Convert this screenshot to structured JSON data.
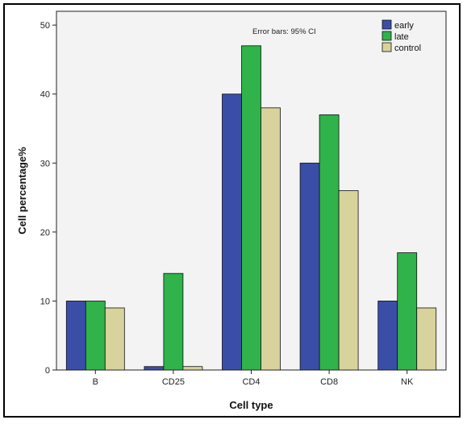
{
  "chart_data": {
    "type": "bar",
    "categories": [
      "B",
      "CD25",
      "CD4",
      "CD8",
      "NK"
    ],
    "series": [
      {
        "name": "early",
        "values": [
          10,
          0.5,
          40,
          30,
          10
        ]
      },
      {
        "name": "late",
        "values": [
          10,
          14,
          47,
          37,
          17
        ]
      },
      {
        "name": "control",
        "values": [
          9,
          0.5,
          38,
          26,
          9
        ]
      }
    ],
    "xlabel": "Cell type",
    "ylabel": "Cell percentage%",
    "ylim": [
      0,
      52
    ],
    "yticks": [
      "0",
      "10",
      "20",
      "30",
      "40",
      "50"
    ],
    "annotation": "Error bars: 95% CI",
    "legend_position": "top-right",
    "colors": {
      "early": "#3a4ea8",
      "late": "#2fb34a",
      "control": "#d8d29c",
      "plot_background": "#f3f3f3"
    }
  }
}
